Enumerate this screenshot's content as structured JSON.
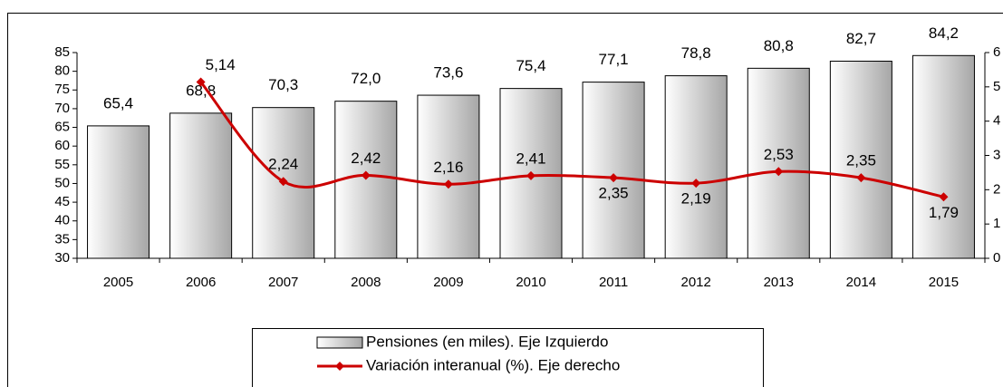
{
  "chart_data": {
    "type": "bar",
    "categories": [
      "2005",
      "2006",
      "2007",
      "2008",
      "2009",
      "2010",
      "2011",
      "2012",
      "2013",
      "2014",
      "2015"
    ],
    "series": [
      {
        "name": "Pensiones (en miles). Eje Izquierdo",
        "type": "bar",
        "color": "#a6a6a6",
        "values": [
          65.4,
          68.8,
          70.3,
          72.0,
          73.6,
          75.4,
          77.1,
          78.8,
          80.8,
          82.7,
          84.2
        ],
        "value_labels": [
          "65,4",
          "68,8",
          "70,3",
          "72,0",
          "73,6",
          "75,4",
          "77,1",
          "78,8",
          "80,8",
          "82,7",
          "84,2"
        ]
      },
      {
        "name": "Variación interanual (%). Eje derecho",
        "type": "line",
        "axis": "y2",
        "color": "#cc0000",
        "values": [
          null,
          5.14,
          2.24,
          2.42,
          2.16,
          2.41,
          2.35,
          2.19,
          2.53,
          2.35,
          1.79
        ],
        "value_labels": [
          null,
          "5,14",
          "2,24",
          "2,42",
          "2,16",
          "2,41",
          "2,35",
          "2,19",
          "2,53",
          "2,35",
          "1,79"
        ]
      }
    ],
    "ylim": [
      30,
      85
    ],
    "yticks": [
      30,
      35,
      40,
      45,
      50,
      55,
      60,
      65,
      70,
      75,
      80,
      85
    ],
    "y2lim": [
      0,
      6
    ],
    "y2ticks": [
      0,
      1,
      2,
      3,
      4,
      5,
      6
    ]
  }
}
